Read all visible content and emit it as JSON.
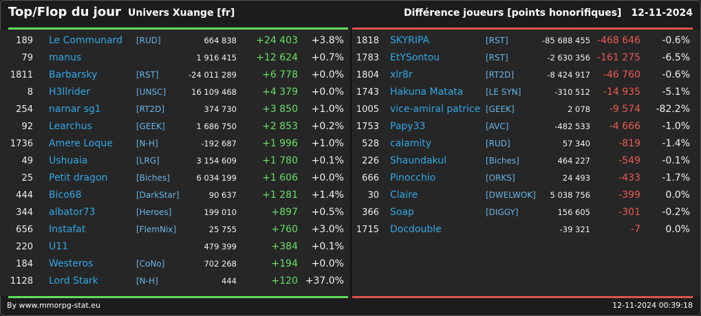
{
  "header": {
    "title": "Top/Flop du jour",
    "subtitle": "Univers Xuange [fr]",
    "metric": "Différence joueurs [points honorifiques]",
    "date": "12-11-2024"
  },
  "colors": {
    "top": "#5fe05f",
    "flop": "#e2524e",
    "name": "#32a8e6"
  },
  "top": [
    {
      "id": "189",
      "name": "Le Communard",
      "tag": "[RUD]",
      "score": "664 838",
      "diff": "+24 403",
      "pct": "+3.8%"
    },
    {
      "id": "79",
      "name": "manus",
      "tag": "",
      "score": "1 916 415",
      "diff": "+12 624",
      "pct": "+0.7%"
    },
    {
      "id": "1811",
      "name": "Barbarsky",
      "tag": "[RST]",
      "score": "-24 011 289",
      "diff": "+6 778",
      "pct": "+0.0%"
    },
    {
      "id": "8",
      "name": "H3llrider",
      "tag": "[UNSC]",
      "score": "16 109 468",
      "diff": "+4 379",
      "pct": "+0.0%"
    },
    {
      "id": "254",
      "name": "narnar sg1",
      "tag": "[RT2D]",
      "score": "374 730",
      "diff": "+3 850",
      "pct": "+1.0%"
    },
    {
      "id": "92",
      "name": "Learchus",
      "tag": "[GEEK]",
      "score": "1 686 750",
      "diff": "+2 853",
      "pct": "+0.2%"
    },
    {
      "id": "1736",
      "name": "Amere Loque",
      "tag": "[N-H]",
      "score": "-192 687",
      "diff": "+1 996",
      "pct": "+1.0%"
    },
    {
      "id": "49",
      "name": "Ushuaia",
      "tag": "[LRG]",
      "score": "3 154 609",
      "diff": "+1 780",
      "pct": "+0.1%"
    },
    {
      "id": "25",
      "name": "Petit dragon",
      "tag": "[Biches]",
      "score": "6 034 199",
      "diff": "+1 606",
      "pct": "+0.0%"
    },
    {
      "id": "444",
      "name": "Bico68",
      "tag": "[DarkStar]",
      "score": "90 637",
      "diff": "+1 281",
      "pct": "+1.4%"
    },
    {
      "id": "344",
      "name": "albator73",
      "tag": "[Heroes]",
      "score": "199 010",
      "diff": "+897",
      "pct": "+0.5%"
    },
    {
      "id": "656",
      "name": "Instafat",
      "tag": "[FlemNix]",
      "score": "25 755",
      "diff": "+760",
      "pct": "+3.0%"
    },
    {
      "id": "220",
      "name": "U11",
      "tag": "",
      "score": "479 399",
      "diff": "+384",
      "pct": "+0.1%"
    },
    {
      "id": "184",
      "name": "Westeros",
      "tag": "[CoNo]",
      "score": "702 268",
      "diff": "+194",
      "pct": "+0.0%"
    },
    {
      "id": "1128",
      "name": "Lord Stark",
      "tag": "[N-H]",
      "score": "444",
      "diff": "+120",
      "pct": "+37.0%"
    }
  ],
  "flop": [
    {
      "id": "1818",
      "name": "SKYRIPA",
      "tag": "[RST]",
      "score": "-85 688 455",
      "diff": "-468 646",
      "pct": "-0.6%"
    },
    {
      "id": "1783",
      "name": "EtYSontou",
      "tag": "[RST]",
      "score": "-2 630 356",
      "diff": "-161 275",
      "pct": "-6.5%"
    },
    {
      "id": "1804",
      "name": "xlr8r",
      "tag": "[RT2D]",
      "score": "-8 424 917",
      "diff": "-46 760",
      "pct": "-0.6%"
    },
    {
      "id": "1743",
      "name": "Hakuna Matata",
      "tag": "[LE SYN]",
      "score": "-310 512",
      "diff": "-14 935",
      "pct": "-5.1%"
    },
    {
      "id": "1005",
      "name": "vice-amiral patrice",
      "tag": "[GEEK]",
      "score": "2 078",
      "diff": "-9 574",
      "pct": "-82.2%"
    },
    {
      "id": "1753",
      "name": "Papy33",
      "tag": "[AVC]",
      "score": "-482 533",
      "diff": "-4 666",
      "pct": "-1.0%"
    },
    {
      "id": "528",
      "name": "calamity",
      "tag": "[RUD]",
      "score": "57 340",
      "diff": "-819",
      "pct": "-1.4%"
    },
    {
      "id": "226",
      "name": "Shaundakul",
      "tag": "[Biches]",
      "score": "464 227",
      "diff": "-549",
      "pct": "-0.1%"
    },
    {
      "id": "666",
      "name": "Pinocchio",
      "tag": "[ORKS]",
      "score": "24 493",
      "diff": "-433",
      "pct": "-1.7%"
    },
    {
      "id": "30",
      "name": "Claire",
      "tag": "[DWELWOK]",
      "score": "5 038 756",
      "diff": "-399",
      "pct": "0.0%"
    },
    {
      "id": "366",
      "name": "Soap",
      "tag": "[DIGGY]",
      "score": "156 605",
      "diff": "-301",
      "pct": "-0.2%"
    },
    {
      "id": "1715",
      "name": "Docdouble",
      "tag": "",
      "score": "-39 321",
      "diff": "-7",
      "pct": "0.0%"
    }
  ],
  "footer": {
    "credit": "By www.mmorpg-stat.eu",
    "timestamp": "12-11-2024 00:39:18"
  }
}
